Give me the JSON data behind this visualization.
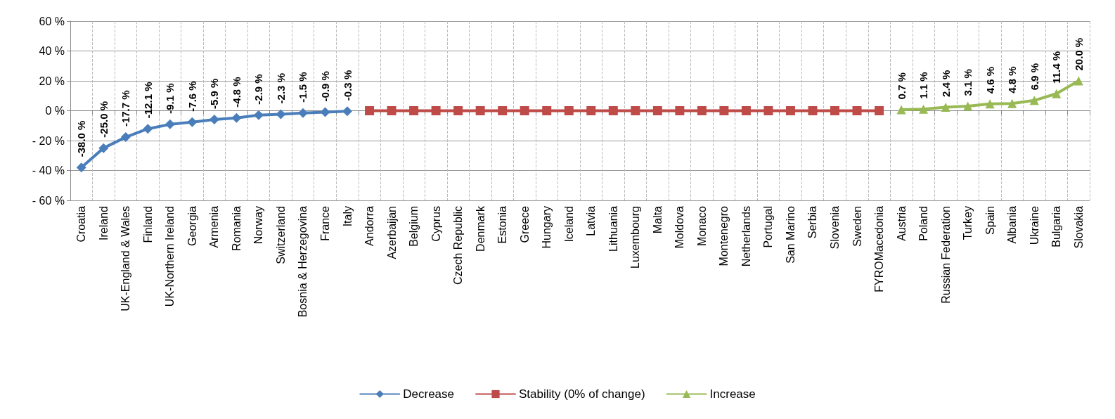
{
  "chart_data": {
    "type": "line",
    "categories": [
      "Croatia",
      "Ireland",
      "UK-England & Wales",
      "Finland",
      "UK-Northern Ireland",
      "Georgia",
      "Armenia",
      "Romania",
      "Norway",
      "Switzerland",
      "Bosnia & Herzegovina",
      "France",
      "Italy",
      "Andorra",
      "Azerbaijan",
      "Belgium",
      "Cyprus",
      "Czech Republic",
      "Denmark",
      "Estonia",
      "Greece",
      "Hungary",
      "Iceland",
      "Latvia",
      "Lithuania",
      "Luxembourg",
      "Malta",
      "Moldova",
      "Monaco",
      "Montenegro",
      "Netherlands",
      "Portugal",
      "San Marino",
      "Serbia",
      "Slovenia",
      "Sweden",
      "FYROMacedonia",
      "Austria",
      "Poland",
      "Russian Federation",
      "Turkey",
      "Spain",
      "Albania",
      "Ukraine",
      "Bulgaria",
      "Slovakia"
    ],
    "series": [
      {
        "name": "Decrease",
        "color": "#4a7ebb",
        "marker": "diamond",
        "values": [
          -38.0,
          -25.0,
          -17.7,
          -12.1,
          -9.1,
          -7.6,
          -5.9,
          -4.8,
          -2.9,
          -2.3,
          -1.5,
          -0.9,
          -0.3,
          null,
          null,
          null,
          null,
          null,
          null,
          null,
          null,
          null,
          null,
          null,
          null,
          null,
          null,
          null,
          null,
          null,
          null,
          null,
          null,
          null,
          null,
          null,
          null,
          null,
          null,
          null,
          null,
          null,
          null,
          null,
          null,
          null
        ],
        "value_labels": [
          "-38.0 %",
          "-25.0 %",
          "-17.7 %",
          "-12.1 %",
          "-9.1 %",
          "-7.6 %",
          "-5.9 %",
          "-4.8 %",
          "-2.9 %",
          "-2.3 %",
          "-1.5 %",
          "-0.9 %",
          "-0.3 %",
          null,
          null,
          null,
          null,
          null,
          null,
          null,
          null,
          null,
          null,
          null,
          null,
          null,
          null,
          null,
          null,
          null,
          null,
          null,
          null,
          null,
          null,
          null,
          null,
          null,
          null,
          null,
          null,
          null,
          null,
          null,
          null,
          null
        ]
      },
      {
        "name": "Stability (0% of change)",
        "color": "#be4b48",
        "marker": "square",
        "values": [
          null,
          null,
          null,
          null,
          null,
          null,
          null,
          null,
          null,
          null,
          null,
          null,
          null,
          0,
          0,
          0,
          0,
          0,
          0,
          0,
          0,
          0,
          0,
          0,
          0,
          0,
          0,
          0,
          0,
          0,
          0,
          0,
          0,
          0,
          0,
          0,
          0,
          null,
          null,
          null,
          null,
          null,
          null,
          null,
          null,
          null
        ]
      },
      {
        "name": "Increase",
        "color": "#98b954",
        "marker": "triangle",
        "values": [
          null,
          null,
          null,
          null,
          null,
          null,
          null,
          null,
          null,
          null,
          null,
          null,
          null,
          null,
          null,
          null,
          null,
          null,
          null,
          null,
          null,
          null,
          null,
          null,
          null,
          null,
          null,
          null,
          null,
          null,
          null,
          null,
          null,
          null,
          null,
          null,
          null,
          0.7,
          1.1,
          2.4,
          3.1,
          4.6,
          4.8,
          6.9,
          11.4,
          20.0
        ],
        "value_labels": [
          null,
          null,
          null,
          null,
          null,
          null,
          null,
          null,
          null,
          null,
          null,
          null,
          null,
          null,
          null,
          null,
          null,
          null,
          null,
          null,
          null,
          null,
          null,
          null,
          null,
          null,
          null,
          null,
          null,
          null,
          null,
          null,
          null,
          null,
          null,
          null,
          null,
          "0.7 %",
          "1.1 %",
          "2.4 %",
          "3.1 %",
          "4.6 %",
          "4.8 %",
          "6.9 %",
          "11.4 %",
          "20.0 %"
        ]
      }
    ],
    "ylim": [
      -60,
      60
    ],
    "yticks": [
      {
        "value": -60,
        "label": "- 60 %"
      },
      {
        "value": -40,
        "label": "- 40 %"
      },
      {
        "value": -20,
        "label": "- 20 %"
      },
      {
        "value": 0,
        "label": "0 %"
      },
      {
        "value": 20,
        "label": "20 %"
      },
      {
        "value": 40,
        "label": "40 %"
      },
      {
        "value": 60,
        "label": "60 %"
      }
    ],
    "grid": true,
    "legend": "bottom",
    "line_style": "solid"
  }
}
